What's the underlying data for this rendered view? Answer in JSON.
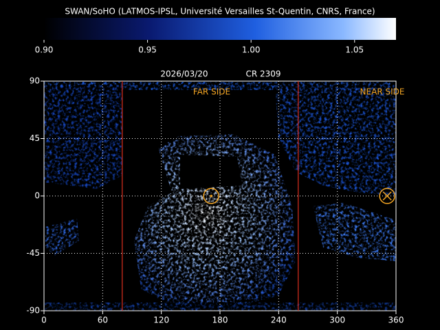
{
  "chart_data": {
    "type": "map",
    "title": "SWAN/SoHO (LATMOS-IPSL, Université Versailles St-Quentin, CNRS, France)",
    "colorbar": {
      "lim": [
        0.9,
        1.07
      ],
      "ticks": [
        {
          "value": 0.9,
          "label": "0.90"
        },
        0.95,
        {
          "value": 1.0,
          "label": "1.00"
        },
        1.05
      ]
    },
    "date": "2026/03/20",
    "rotation": "CR 2309",
    "annotations": [
      "FAR SIDE",
      "NEAR SIDE"
    ],
    "xlim": [
      0,
      360
    ],
    "ylim": [
      -90,
      90
    ],
    "xticks": [
      0,
      60,
      120,
      180,
      240,
      300,
      360
    ],
    "yticks": [
      90,
      45,
      0,
      -45,
      -90
    ],
    "grid": true,
    "limb_lines": {
      "color": "#e03020",
      "x": [
        80,
        260
      ]
    },
    "sun_markers": {
      "color": "#f5a623",
      "x": [
        171,
        351
      ],
      "y": [
        0,
        0
      ]
    }
  }
}
